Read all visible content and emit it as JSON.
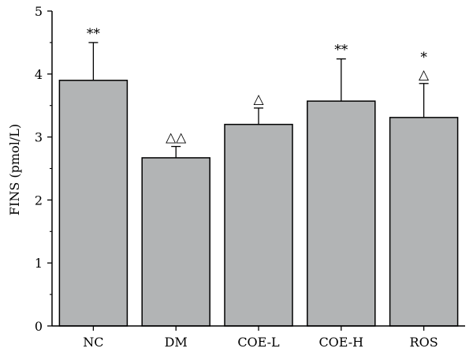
{
  "chart_data": {
    "type": "bar",
    "ylabel": "FINS (pmol/L)",
    "xlabel": "",
    "categories": [
      "NC",
      "DM",
      "COE-L",
      "COE-H",
      "ROS"
    ],
    "values": [
      3.9,
      2.67,
      3.2,
      3.57,
      3.31
    ],
    "errors": [
      0.6,
      0.18,
      0.26,
      0.67,
      0.54
    ],
    "annotations": [
      [
        "**"
      ],
      [
        "△△"
      ],
      [
        "△"
      ],
      [
        "**"
      ],
      [
        "*",
        "△"
      ]
    ],
    "ylim": [
      0,
      5
    ],
    "yticks": [
      "0",
      "1",
      "2",
      "3",
      "4",
      "5"
    ],
    "grid": false,
    "bar_color": "#b2b4b5",
    "edge_color": "#000000"
  }
}
